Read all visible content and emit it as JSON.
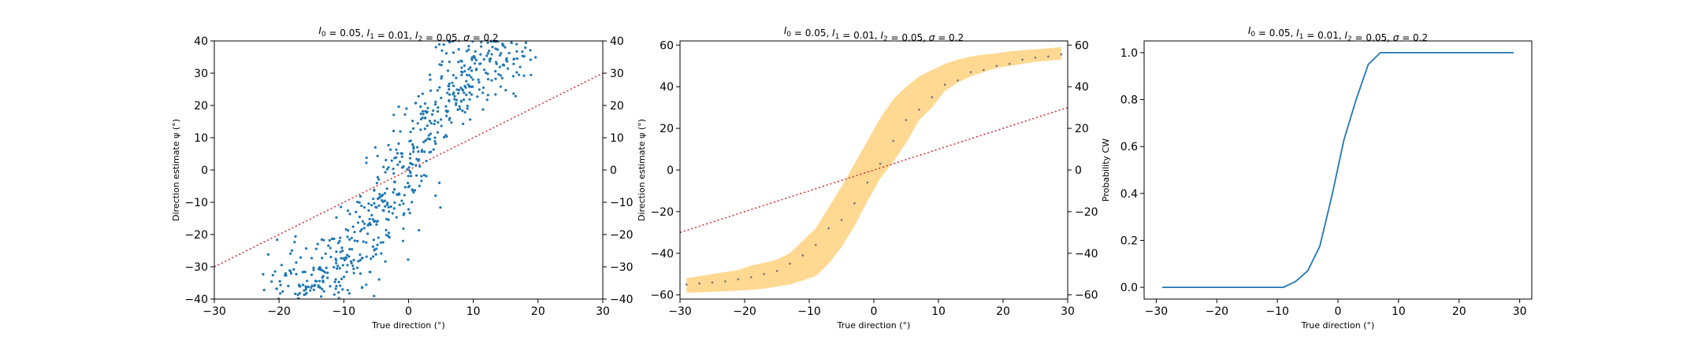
{
  "colors": {
    "scatter": "#1f77b4",
    "line": "#1f77b4",
    "identity": "#d62728",
    "band": "#ffd78c",
    "mean": "#7f7f7f"
  },
  "chart_data": [
    {
      "type": "scatter",
      "title_parts": [
        "I",
        "0",
        " = 0.05, ",
        "I",
        "1",
        " = 0.01, ",
        "I",
        "2",
        " = 0.05, ",
        "σ",
        " = 0.2"
      ],
      "xlabel": "True direction (°)",
      "ylabel": "Direction estimate ψ (°)",
      "xlim": [
        -30,
        30
      ],
      "ylim": [
        -40,
        40
      ],
      "xticks": [
        "−30",
        "−20",
        "−10",
        "0",
        "10",
        "20",
        "30"
      ],
      "yticks": [
        "−40",
        "−30",
        "−20",
        "−10",
        "0",
        "10",
        "20",
        "30",
        "40"
      ],
      "right_yticks": [
        "−40",
        "−30",
        "−20",
        "−10",
        "0",
        "10",
        "20",
        "30",
        "40"
      ],
      "identity_line": {
        "x": [
          -30,
          30
        ],
        "y": [
          -30,
          30
        ]
      },
      "scatter_groups": [
        {
          "x": -20,
          "y": -38.5
        },
        {
          "x": -17,
          "y": -38.5
        },
        {
          "x": -15,
          "y": -37
        },
        {
          "x": -13,
          "y": -35
        },
        {
          "x": -11,
          "y": -32
        },
        {
          "x": -9,
          "y": -28
        },
        {
          "x": -7,
          "y": -22
        },
        {
          "x": -5,
          "y": -15
        },
        {
          "x": -3,
          "y": -7
        },
        {
          "x": -1,
          "y": -1
        },
        {
          "x": 1,
          "y": 6
        },
        {
          "x": 3,
          "y": 14
        },
        {
          "x": 5,
          "y": 22
        },
        {
          "x": 7,
          "y": 28
        },
        {
          "x": 9,
          "y": 32
        },
        {
          "x": 11,
          "y": 35
        },
        {
          "x": 13,
          "y": 37
        },
        {
          "x": 15,
          "y": 38
        },
        {
          "x": 17,
          "y": 39
        }
      ],
      "grid": false
    },
    {
      "type": "line",
      "title_parts": [
        "I",
        "0",
        " = 0.05, ",
        "I",
        "1",
        " = 0.01, ",
        "I",
        "2",
        " = 0.05, ",
        "σ",
        " = 0.2"
      ],
      "xlabel": "True direction (°)",
      "ylabel": "Direction estimate ψ (°)",
      "xlim": [
        -30,
        30
      ],
      "ylim": [
        -62,
        62
      ],
      "xticks": [
        "−30",
        "−20",
        "−10",
        "0",
        "10",
        "20",
        "30"
      ],
      "yticks": [
        "−60",
        "−40",
        "−20",
        "0",
        "20",
        "40",
        "60"
      ],
      "right_yticks": [
        "−60",
        "−40",
        "−20",
        "0",
        "20",
        "40",
        "60"
      ],
      "identity_line": {
        "x": [
          -30,
          30
        ],
        "y": [
          -30,
          30
        ]
      },
      "x": [
        -29,
        -27,
        -25,
        -23,
        -21,
        -19,
        -17,
        -15,
        -13,
        -11,
        -9,
        -7,
        -5,
        -3,
        -1,
        1,
        3,
        5,
        7,
        9,
        11,
        13,
        15,
        17,
        19,
        21,
        23,
        25,
        27,
        29
      ],
      "mean": [
        -55,
        -54.5,
        -54,
        -53.5,
        -52.5,
        -51.5,
        -50,
        -48.5,
        -45,
        -41,
        -36,
        -28,
        -24,
        -16,
        -6,
        3,
        14,
        24,
        29,
        35,
        41,
        43,
        47,
        48,
        50,
        51,
        53,
        54,
        54.5,
        55.5
      ],
      "band_lower": [
        -59,
        -58.8,
        -58.5,
        -58.2,
        -58,
        -57.5,
        -57,
        -56,
        -55,
        -53,
        -51,
        -45,
        -37,
        -27,
        -15,
        -4,
        4,
        13,
        24,
        30,
        38,
        42,
        45,
        47,
        49,
        50,
        51,
        52,
        52.5,
        53
      ],
      "band_upper": [
        -52,
        -51,
        -50,
        -49,
        -48,
        -46,
        -44.5,
        -43,
        -40,
        -34,
        -28,
        -18,
        -8,
        3,
        14,
        25,
        34,
        40,
        45,
        48,
        51,
        53,
        54.5,
        55.5,
        56,
        57,
        57.5,
        58,
        58.5,
        59
      ],
      "grid": false
    },
    {
      "type": "line",
      "title_parts": [
        "I",
        "0",
        " = 0.05, ",
        "I",
        "1",
        " = 0.01, ",
        "I",
        "2",
        " = 0.05, ",
        "σ",
        " = 0.2"
      ],
      "xlabel": "True direction (°)",
      "ylabel": "Probability CW",
      "xlim": [
        -32,
        32
      ],
      "ylim": [
        -0.05,
        1.05
      ],
      "xticks": [
        "−30",
        "−20",
        "−10",
        "0",
        "10",
        "20",
        "30"
      ],
      "yticks": [
        "0.0",
        "0.2",
        "0.4",
        "0.6",
        "0.8",
        "1.0"
      ],
      "x": [
        -29,
        -27,
        -25,
        -23,
        -21,
        -19,
        -17,
        -15,
        -13,
        -11,
        -9,
        -7,
        -5,
        -3,
        -1,
        1,
        3,
        5,
        7,
        9,
        11,
        13,
        15,
        17,
        19,
        21,
        23,
        25,
        27,
        29
      ],
      "y": [
        0,
        0,
        0,
        0,
        0,
        0,
        0,
        0,
        0,
        0,
        0,
        0.025,
        0.07,
        0.175,
        0.39,
        0.63,
        0.8,
        0.95,
        1,
        1,
        1,
        1,
        1,
        1,
        1,
        1,
        1,
        1,
        1,
        1
      ],
      "grid": false
    }
  ]
}
